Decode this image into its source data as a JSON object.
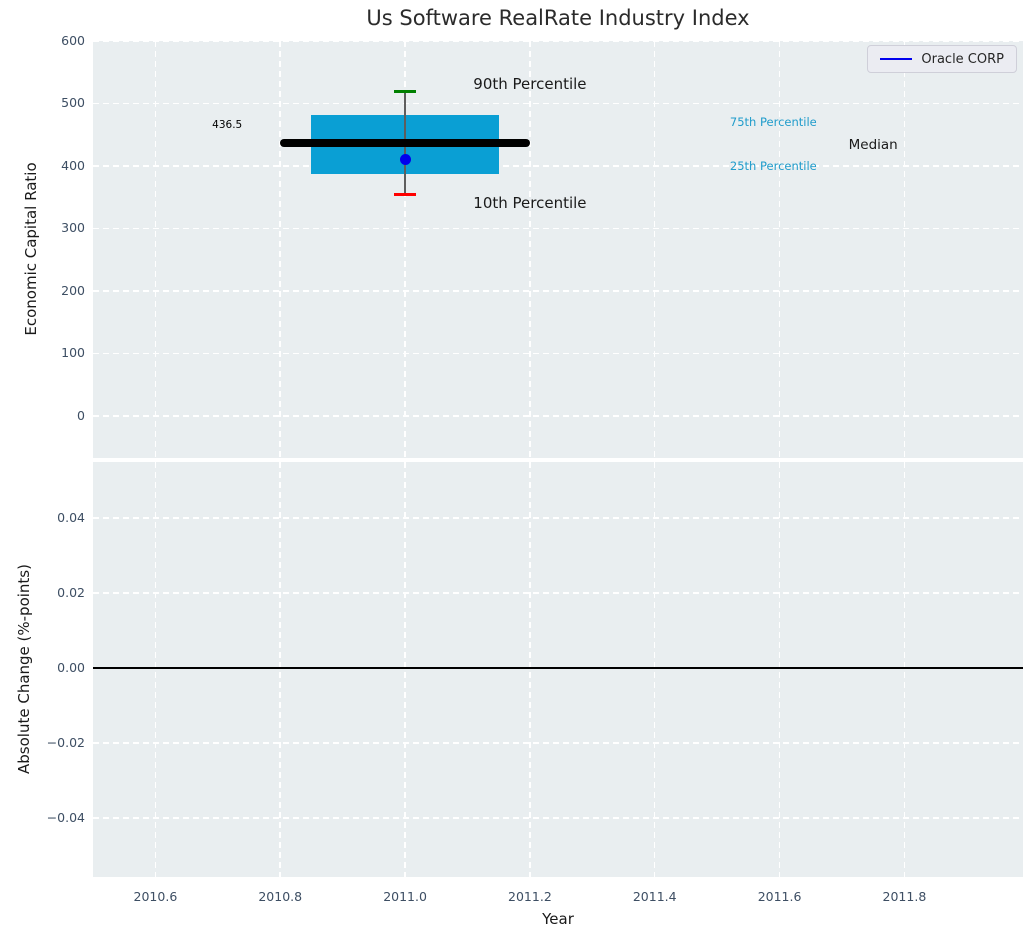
{
  "figure": {
    "background": "#ffffff",
    "axes_background": "#e9eef0",
    "grid_color": "#ffffff",
    "tick_label_color": "#3d4e63"
  },
  "chart_data": [
    {
      "type": "box",
      "title": "Us Software RealRate Industry Index",
      "ylabel": "Economic Capital Ratio",
      "xlabel": "",
      "xlim": [
        2010.5,
        2011.99
      ],
      "ylim": [
        -67.4,
        600
      ],
      "yticks": [
        0,
        100,
        200,
        300,
        400,
        500,
        600
      ],
      "ytick_labels": [
        "0",
        "100",
        "200",
        "300",
        "400",
        "500",
        "600"
      ],
      "xticks": [
        2010.6,
        2010.8,
        2011.0,
        2011.2,
        2011.4,
        2011.6,
        2011.8
      ],
      "grid": true,
      "legend": {
        "label": "Oracle CORP",
        "line_color": "#0000ee",
        "position": "upper right"
      },
      "box": {
        "x_left": 2010.85,
        "x_right": 2011.15,
        "q1_25th_percentile": 387,
        "q3_75th_percentile": 481,
        "fill_color": "#0a9fd4"
      },
      "median": {
        "value": 436.5,
        "x_from": 2010.8,
        "x_to": 2011.2,
        "color": "#000000"
      },
      "whisker": {
        "x": 2011.0,
        "p90": 519,
        "p10": 354,
        "cap_halfwidth": 0.017,
        "line_color": "#5e5e5e",
        "p90_cap_color": "#008000",
        "p10_cap_color": "#ff0000"
      },
      "series": [
        {
          "name": "Oracle CORP",
          "x": [
            2011.0
          ],
          "y": [
            410
          ],
          "color": "#0000ee",
          "marker": "circle"
        }
      ],
      "annotations": [
        {
          "id": "p90-label",
          "text": "90th Percentile",
          "x": 2011.2,
          "y": 531,
          "color": "#1a1a1a",
          "size": 15
        },
        {
          "id": "p10-label",
          "text": "10th Percentile",
          "x": 2011.2,
          "y": 340,
          "color": "#1a1a1a",
          "size": 15
        },
        {
          "id": "median-value",
          "text": "436.5",
          "x": 2010.715,
          "y": 465,
          "color": "#000000",
          "size": 10.5
        },
        {
          "id": "p75-label",
          "text": "75th Percentile",
          "x": 2011.59,
          "y": 471,
          "color": "#209ccb",
          "size": 11.5
        },
        {
          "id": "p25-label",
          "text": "25th Percentile",
          "x": 2011.59,
          "y": 400,
          "color": "#209ccb",
          "size": 11.5
        },
        {
          "id": "median-label",
          "text": "Median",
          "x": 2011.75,
          "y": 433,
          "color": "#1a1a1a",
          "size": 13.5
        }
      ]
    },
    {
      "type": "line",
      "title": "",
      "ylabel": "Absolute Change (%-points)",
      "xlabel": "Year",
      "xlim": [
        2010.5,
        2011.99
      ],
      "ylim": [
        -0.0557,
        0.0549
      ],
      "yticks": [
        -0.04,
        -0.02,
        0.0,
        0.02,
        0.04
      ],
      "ytick_labels": [
        "−0.04",
        "−0.02",
        "0.00",
        "0.02",
        "0.04"
      ],
      "xticks": [
        2010.6,
        2010.8,
        2011.0,
        2011.2,
        2011.4,
        2011.6,
        2011.8
      ],
      "xtick_labels": [
        "2010.6",
        "2010.8",
        "2011.0",
        "2011.2",
        "2011.4",
        "2011.6",
        "2011.8"
      ],
      "grid": true,
      "zero_line": {
        "y": 0.0,
        "color": "#000000"
      },
      "series": []
    }
  ]
}
